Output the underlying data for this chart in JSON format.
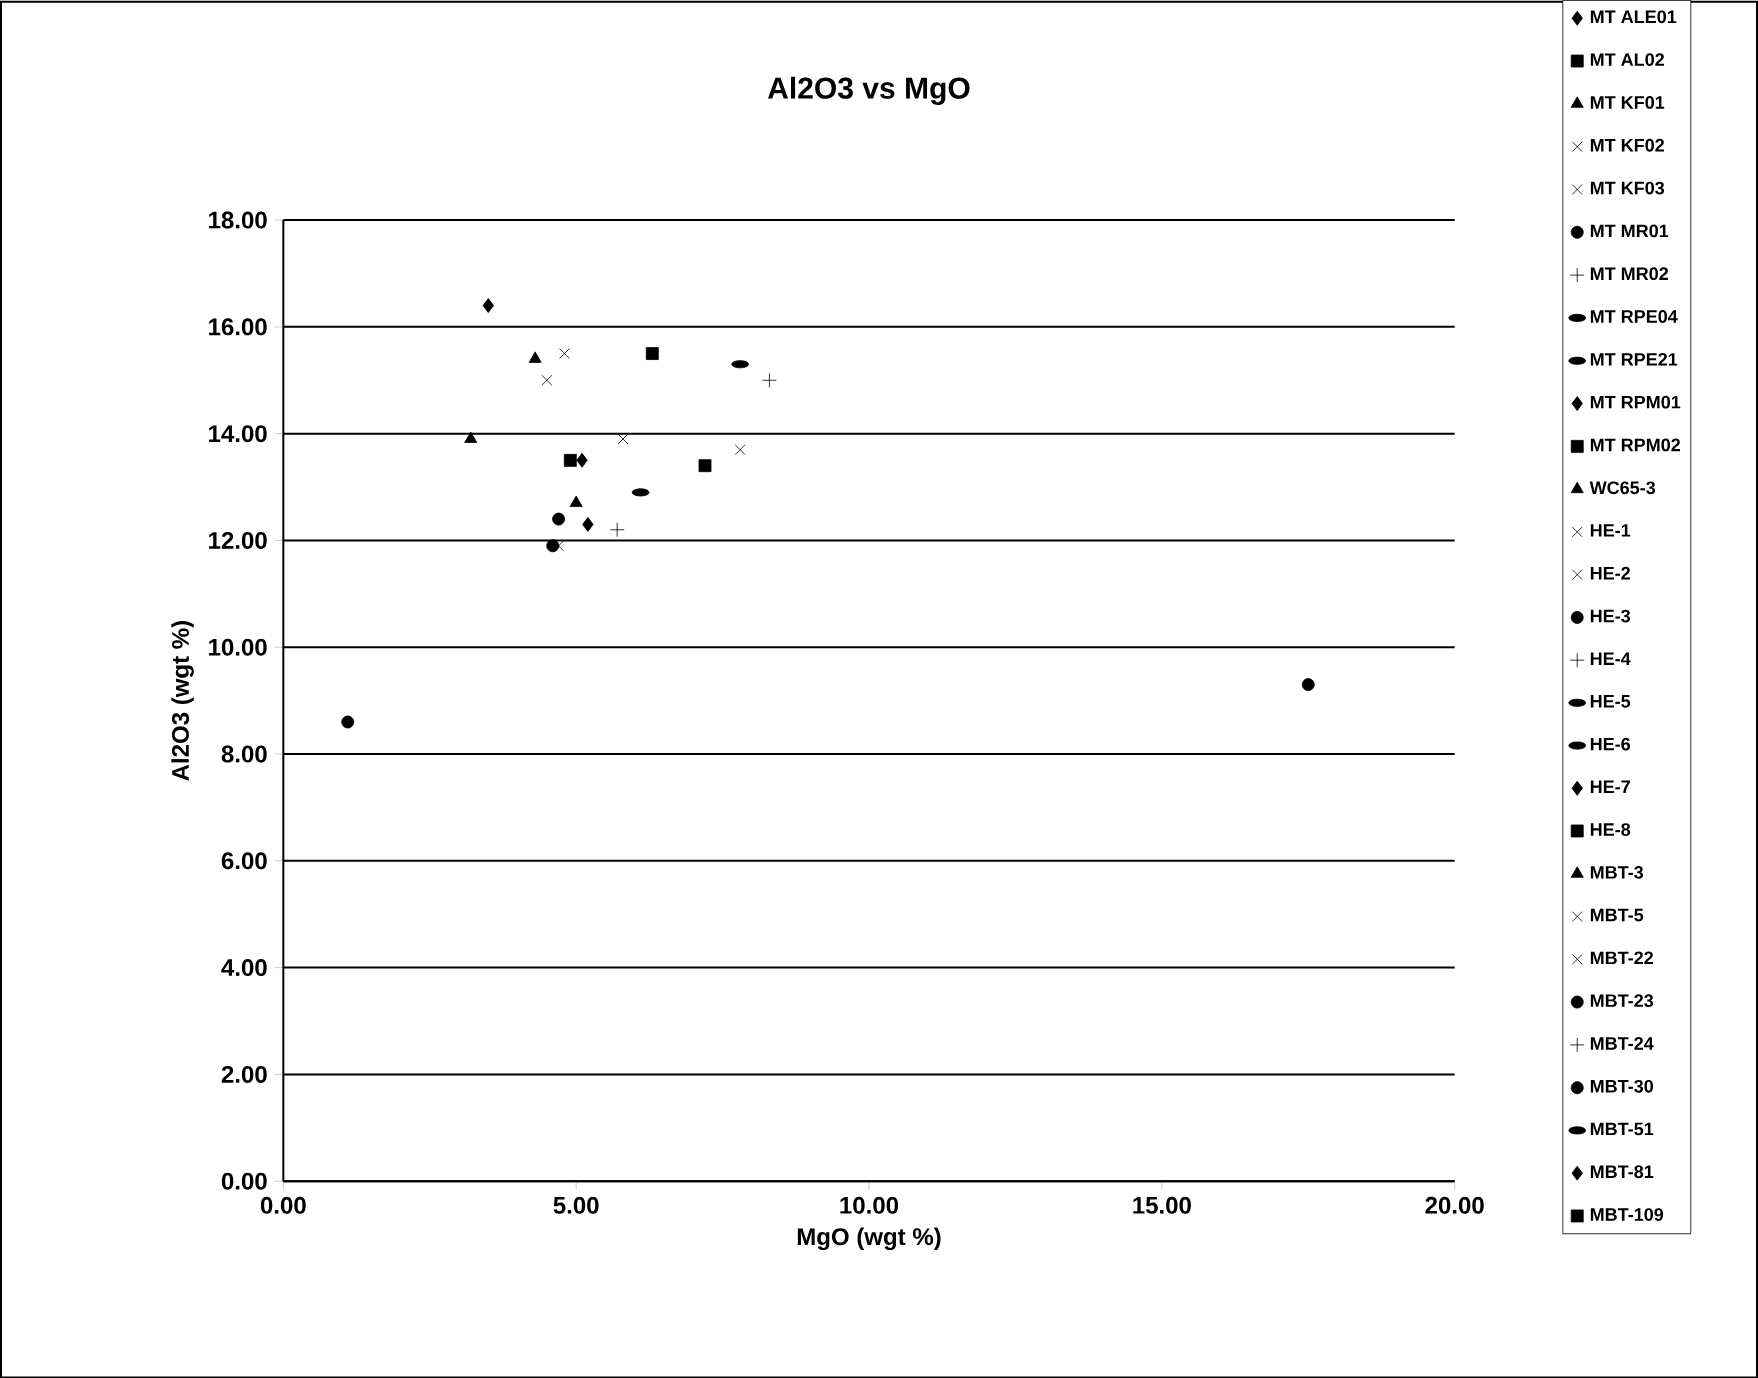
{
  "chart_data": {
    "type": "scatter",
    "title": "Al2O3 vs MgO",
    "xlabel": "MgO (wgt %)",
    "ylabel": "Al2O3 (wgt %)",
    "xlim": [
      0,
      20
    ],
    "ylim": [
      0,
      18
    ],
    "xticks": [
      {
        "value": 0,
        "label": "0.00"
      },
      {
        "value": 5,
        "label": "5.00"
      },
      {
        "value": 10,
        "label": "10.00"
      },
      {
        "value": 15,
        "label": "15.00"
      },
      {
        "value": 20,
        "label": "20.00"
      }
    ],
    "yticks": [
      {
        "value": 0,
        "label": "0.00"
      },
      {
        "value": 2,
        "label": "2.00"
      },
      {
        "value": 4,
        "label": "4.00"
      },
      {
        "value": 6,
        "label": "6.00"
      },
      {
        "value": 8,
        "label": "8.00"
      },
      {
        "value": 10,
        "label": "10.00"
      },
      {
        "value": 12,
        "label": "12.00"
      },
      {
        "value": 14,
        "label": "14.00"
      },
      {
        "value": 16,
        "label": "16.00"
      },
      {
        "value": 18,
        "label": "18.00"
      }
    ],
    "grid": "y",
    "legend": "right",
    "series": [
      {
        "name": "MT ALE01",
        "color": "#000000",
        "marker": "diamond",
        "x": [
          3.5
        ],
        "values": [
          16.4
        ]
      },
      {
        "name": "MT AL02",
        "color": "#000000",
        "marker": "square",
        "x": [
          6.3
        ],
        "values": [
          15.5
        ]
      },
      {
        "name": "MT KF01",
        "color": "#000000",
        "marker": "triangle",
        "x": [
          4.3
        ],
        "values": [
          15.4
        ]
      },
      {
        "name": "MT KF02",
        "color": "#000000",
        "marker": "cross",
        "x": [
          4.8
        ],
        "values": [
          15.5
        ]
      },
      {
        "name": "MT KF03",
        "color": "#000000",
        "marker": "cross",
        "x": [
          4.5
        ],
        "values": [
          15.0
        ]
      },
      {
        "name": "MT MR01",
        "color": "#000000",
        "marker": "circle",
        "x": [
          1.1
        ],
        "values": [
          8.6
        ]
      },
      {
        "name": "MT MR02",
        "color": "#000000",
        "marker": "plus",
        "x": [
          8.3
        ],
        "values": [
          15.0
        ]
      },
      {
        "name": "MT RPE04",
        "color": "#000000",
        "x": [
          7.8
        ],
        "values": [
          15.3
        ]
      },
      {
        "name": "MT RPE21",
        "color": "#000000",
        "x": [
          6.1
        ],
        "values": [
          12.9
        ]
      },
      {
        "name": "MT RPM01",
        "color": "#000000",
        "marker": "diamond",
        "x": [
          5.2
        ],
        "values": [
          12.3
        ]
      },
      {
        "name": "MT RPM02",
        "color": "#000000",
        "marker": "square",
        "x": [
          7.2
        ],
        "values": [
          13.4
        ]
      },
      {
        "name": "WC65-3",
        "color": "#000000",
        "marker": "triangle",
        "x": [
          3.2
        ],
        "values": [
          13.9
        ]
      },
      {
        "name": "HE-1",
        "color": "#000000",
        "marker": "cross",
        "x": [
          7.8
        ],
        "values": [
          13.7
        ]
      },
      {
        "name": "HE-2",
        "color": "#000000",
        "marker": "cross",
        "x": [
          5.8
        ],
        "values": [
          13.9
        ]
      },
      {
        "name": "HE-3",
        "color": "#000000",
        "marker": "circle",
        "x": [
          4.7
        ],
        "values": [
          12.4
        ]
      },
      {
        "name": "HE-4",
        "color": "#000000",
        "marker": "plus",
        "x": [
          5.7
        ],
        "values": [
          12.2
        ]
      },
      {
        "name": "HE-5",
        "color": "#000000"
      },
      {
        "name": "HE-6",
        "color": "#000000"
      },
      {
        "name": "HE-7",
        "color": "#000000",
        "marker": "diamond",
        "x": [
          5.1
        ],
        "values": [
          13.5
        ]
      },
      {
        "name": "HE-8",
        "color": "#000000",
        "marker": "square",
        "x": [
          4.9
        ],
        "values": [
          13.5
        ]
      },
      {
        "name": "MBT-3",
        "color": "#000000",
        "marker": "triangle",
        "x": [
          5.0
        ],
        "values": [
          12.7
        ]
      },
      {
        "name": "MBT-5",
        "color": "#000000",
        "marker": "cross"
      },
      {
        "name": "MBT-22",
        "color": "#000000",
        "marker": "cross",
        "x": [
          4.7
        ],
        "values": [
          11.9
        ]
      },
      {
        "name": "MBT-23",
        "color": "#000000",
        "marker": "circle",
        "x": [
          4.6
        ],
        "values": [
          11.9
        ]
      },
      {
        "name": "MBT-24",
        "color": "#000000",
        "marker": "plus"
      },
      {
        "name": "MBT-30",
        "color": "#000000",
        "marker": "circle",
        "x": [
          17.5
        ],
        "values": [
          9.3
        ]
      },
      {
        "name": "MBT-51",
        "color": "#000000"
      },
      {
        "name": "MBT-81",
        "color": "#000000",
        "marker": "diamond"
      },
      {
        "name": "MBT-109",
        "color": "#000000",
        "marker": "square"
      }
    ]
  }
}
